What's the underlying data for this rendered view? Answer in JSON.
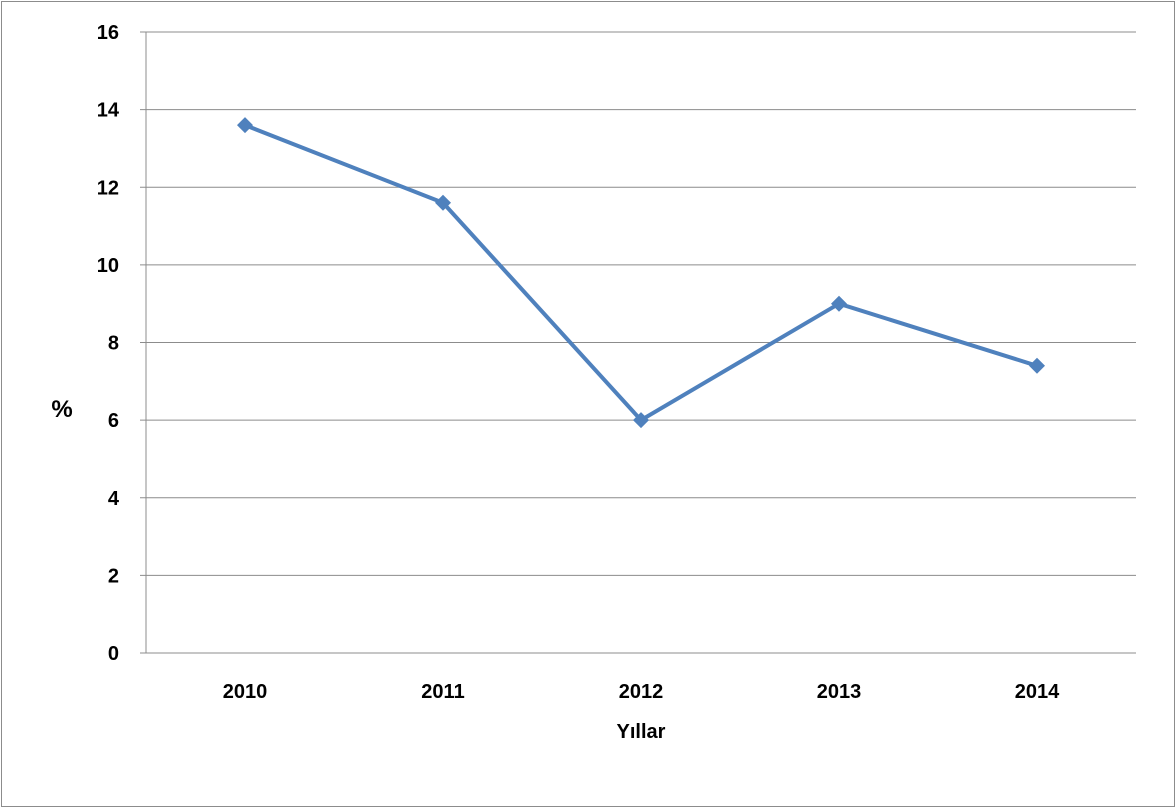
{
  "chart_data": {
    "type": "line",
    "title": "",
    "xlabel": "Yıllar",
    "ylabel": "%",
    "categories": [
      "2010",
      "2011",
      "2012",
      "2013",
      "2014"
    ],
    "series": [
      {
        "values": [
          13.6,
          11.6,
          6.0,
          9.0,
          7.4
        ]
      }
    ],
    "ylim": [
      0,
      16
    ],
    "yticks": [
      0,
      2,
      4,
      6,
      8,
      10,
      12,
      14,
      16
    ],
    "grid": true,
    "legend": "none",
    "colors": {
      "line": "#4f81bd",
      "marker": "#4f81bd",
      "grid": "#8c8c8c"
    }
  }
}
